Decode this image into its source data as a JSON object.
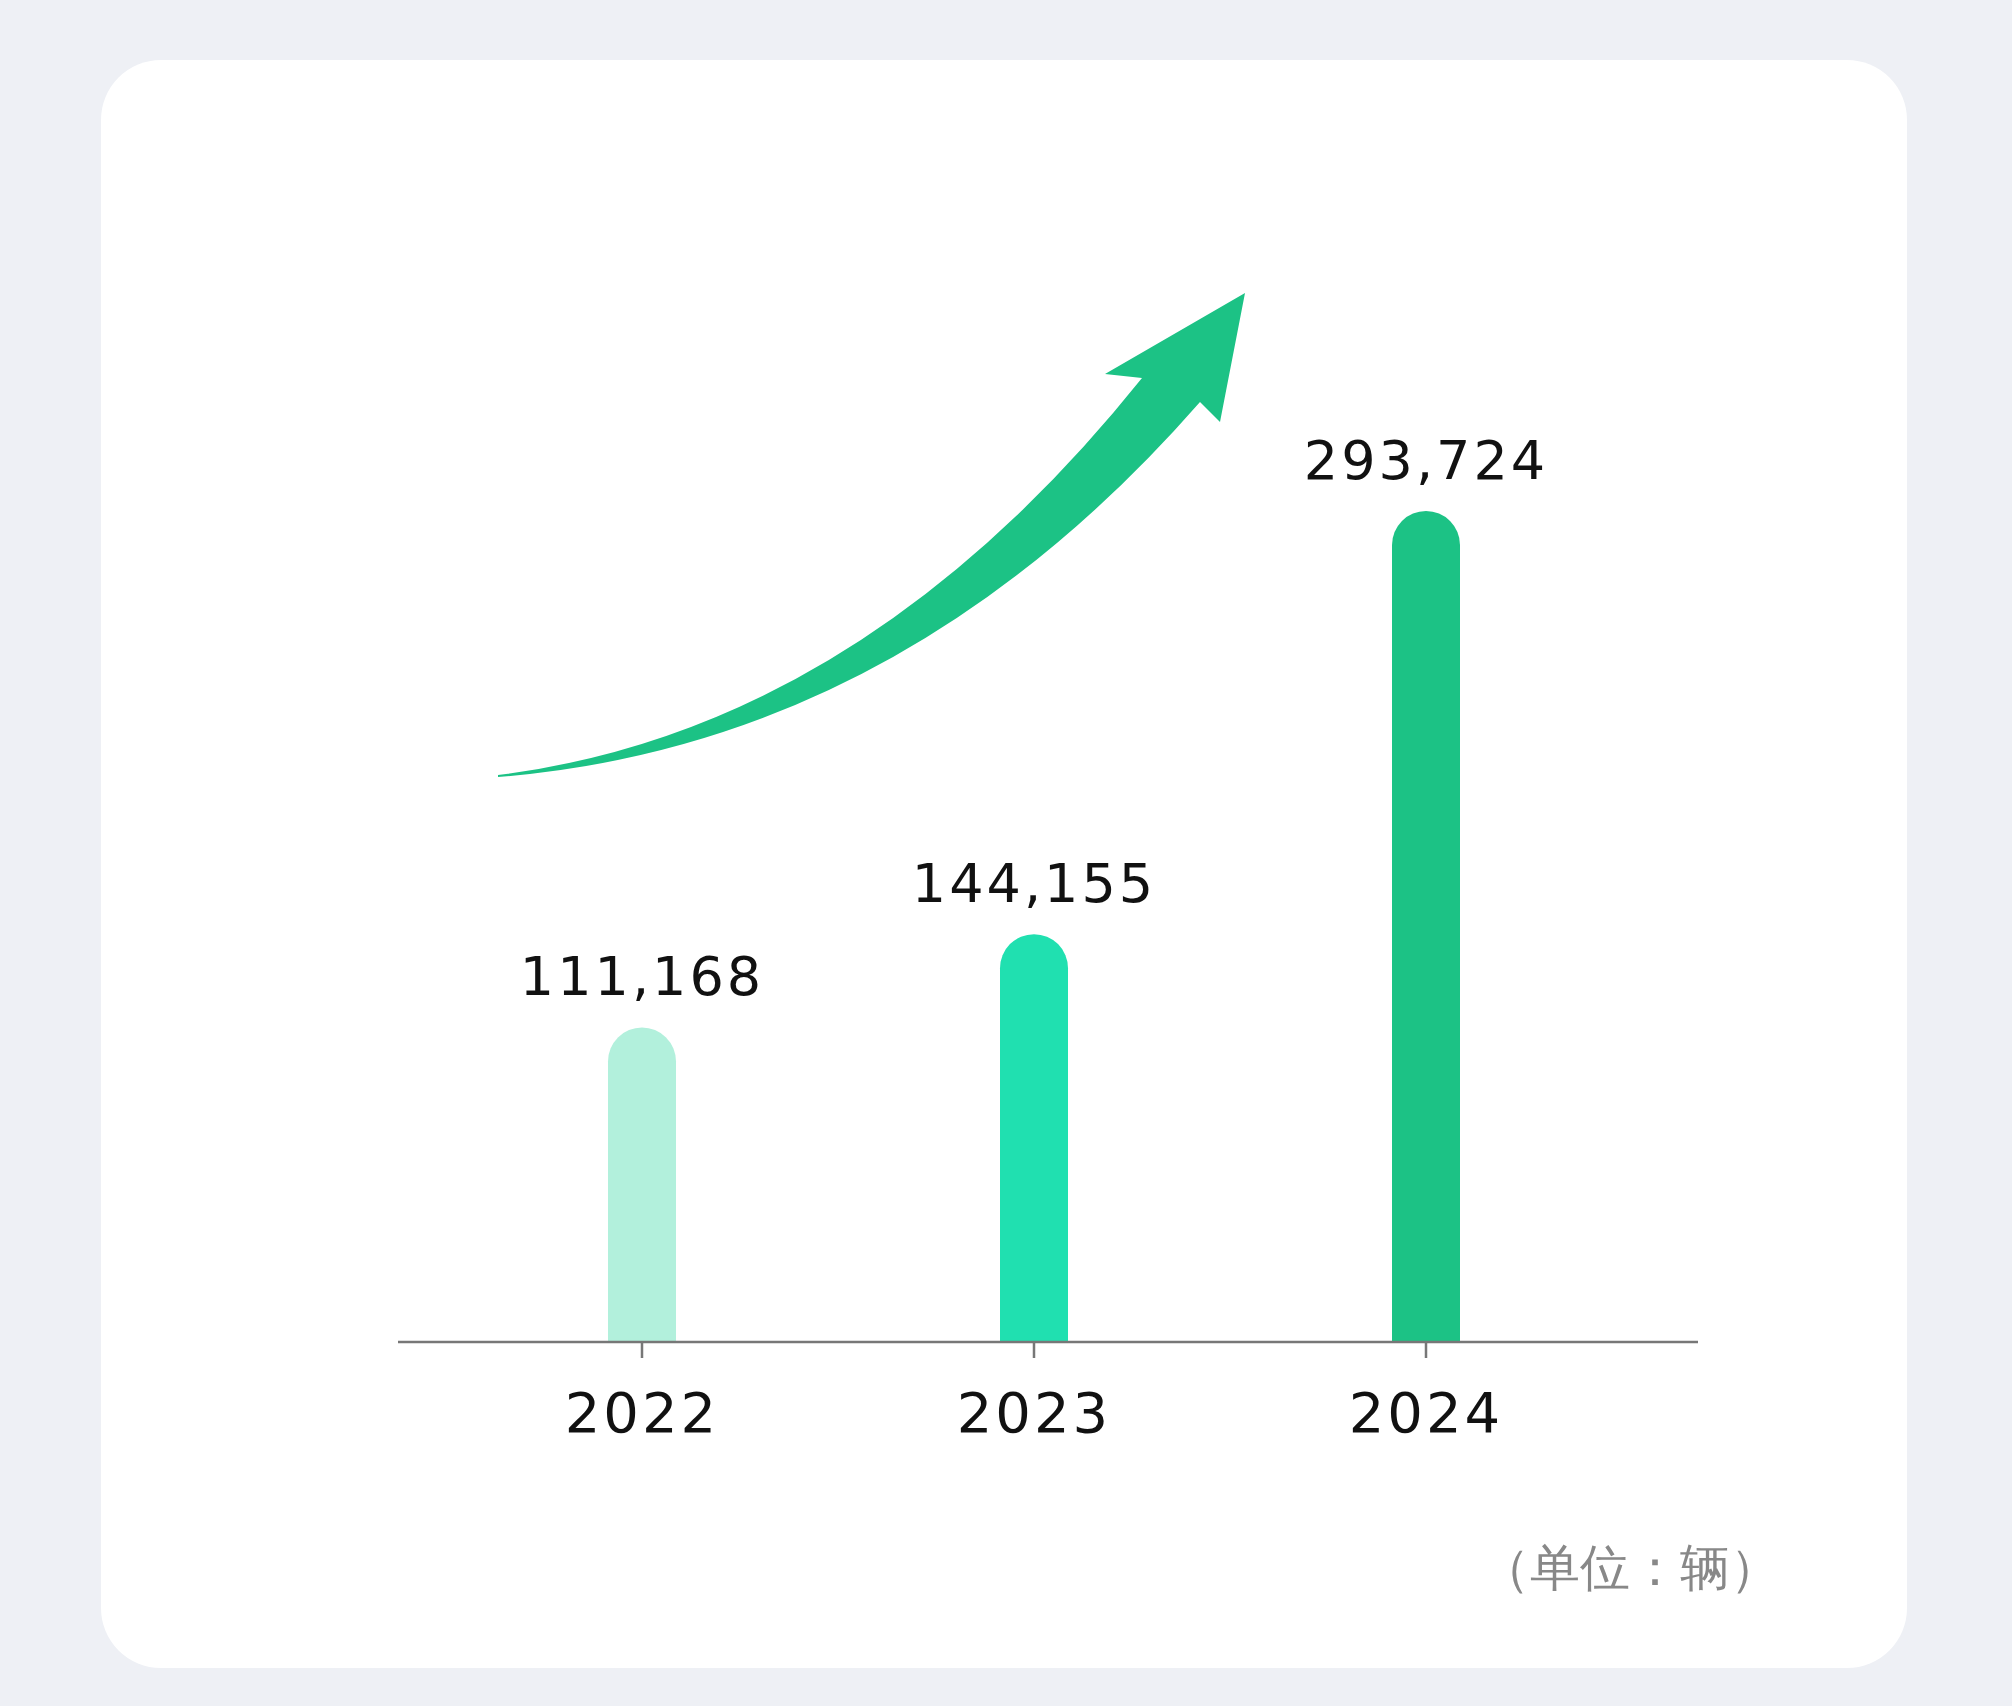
{
  "chart_data": {
    "type": "bar",
    "categories": [
      "2022",
      "2023",
      "2024"
    ],
    "values": [
      111168,
      144155,
      293724
    ],
    "colors": [
      "#b2f0dc",
      "#20e0b0",
      "#1cc285"
    ],
    "value_labels": [
      "111,168",
      "144,155",
      "293,724"
    ],
    "annotations": [
      "（单位：辆）"
    ]
  }
}
